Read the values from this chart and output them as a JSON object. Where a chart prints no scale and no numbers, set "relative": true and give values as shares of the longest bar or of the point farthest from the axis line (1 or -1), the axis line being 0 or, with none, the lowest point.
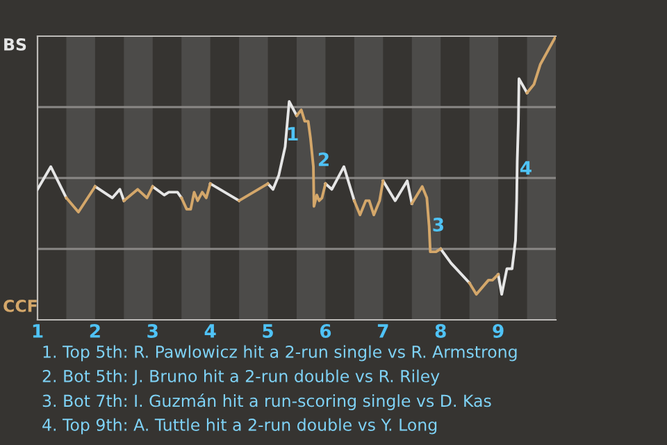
{
  "chart_data": {
    "type": "line",
    "relative": true,
    "xlim": [
      1,
      10
    ],
    "xticks": [
      1,
      2,
      3,
      4,
      5,
      6,
      7,
      8,
      9
    ],
    "marker": "none",
    "line_style": "solid",
    "series": [
      {
        "color": "#e6e6e6",
        "x": [
          1.0,
          1.23,
          1.5,
          1.75,
          2.0,
          2.3,
          2.43,
          2.5,
          2.75,
          3.0,
          3.2,
          3.28,
          3.43,
          3.5,
          3.75,
          4.0,
          4.25,
          4.5,
          4.75,
          5.0,
          5.09,
          5.19,
          5.3,
          5.37,
          5.5,
          5.75,
          6.0,
          6.11,
          6.32,
          6.5,
          6.75,
          7.0,
          7.21,
          7.42,
          7.5,
          7.75,
          8.0,
          8.18,
          8.41,
          8.5,
          8.75,
          9.0,
          9.06,
          9.15,
          9.24,
          9.3,
          9.32,
          9.33,
          9.35,
          9.36,
          9.5
        ],
        "values": [
          0.46,
          0.54,
          0.43,
          null,
          0.47,
          0.43,
          0.46,
          0.42,
          null,
          0.47,
          0.44,
          0.45,
          0.45,
          0.43,
          null,
          0.48,
          0.45,
          0.42,
          null,
          0.48,
          0.46,
          0.51,
          0.61,
          0.77,
          0.72,
          null,
          0.48,
          0.46,
          0.54,
          0.42,
          null,
          0.49,
          0.42,
          0.49,
          0.41,
          null,
          0.25,
          0.2,
          0.15,
          0.13,
          null,
          0.16,
          0.09,
          0.18,
          0.18,
          0.28,
          0.42,
          0.56,
          0.7,
          0.85,
          0.8
        ]
      },
      {
        "color": "#d4a76a",
        "x": [
          1.5,
          1.71,
          2.0,
          2.25,
          2.5,
          2.74,
          2.9,
          3.0,
          3.25,
          3.5,
          3.59,
          3.66,
          3.72,
          3.78,
          3.86,
          3.93,
          4.0,
          4.25,
          4.5,
          4.75,
          5.0,
          5.25,
          5.5,
          5.58,
          5.64,
          5.7,
          5.74,
          5.79,
          5.8,
          5.85,
          5.89,
          5.94,
          6.0,
          6.25,
          6.5,
          6.6,
          6.7,
          6.76,
          6.84,
          6.94,
          7.0,
          7.25,
          7.5,
          7.68,
          7.76,
          7.8,
          7.82,
          7.92,
          8.0,
          8.25,
          8.5,
          8.62,
          8.83,
          8.9,
          9.0,
          9.25,
          9.5,
          9.62,
          9.73,
          10.0
        ],
        "values": [
          0.43,
          0.38,
          0.47,
          null,
          0.42,
          0.46,
          0.43,
          0.47,
          null,
          0.43,
          0.39,
          0.39,
          0.45,
          0.42,
          0.45,
          0.43,
          0.48,
          null,
          0.42,
          0.45,
          0.48,
          null,
          0.72,
          0.74,
          0.7,
          0.7,
          0.64,
          0.54,
          0.4,
          0.44,
          0.42,
          0.43,
          0.48,
          null,
          0.42,
          0.37,
          0.42,
          0.42,
          0.37,
          0.42,
          0.49,
          null,
          0.41,
          0.47,
          0.43,
          0.33,
          0.24,
          0.24,
          0.25,
          null,
          0.13,
          0.09,
          0.14,
          0.14,
          0.16,
          null,
          0.8,
          0.83,
          0.9,
          1.0
        ]
      }
    ],
    "ref_lines": [
      {
        "axis": "y",
        "value": 0.25,
        "color": "#8a8886"
      },
      {
        "axis": "y",
        "value": 0.5,
        "color": "#8a8886"
      },
      {
        "axis": "y",
        "value": 0.75,
        "color": "#8a8886"
      }
    ],
    "bands": [
      {
        "axis": "x",
        "from": 1.5,
        "to": 2,
        "color": "#4c4b49"
      },
      {
        "axis": "x",
        "from": 2.5,
        "to": 3,
        "color": "#4c4b49"
      },
      {
        "axis": "x",
        "from": 3.5,
        "to": 4,
        "color": "#4c4b49"
      },
      {
        "axis": "x",
        "from": 4.5,
        "to": 5,
        "color": "#4c4b49"
      },
      {
        "axis": "x",
        "from": 5.5,
        "to": 6,
        "color": "#4c4b49"
      },
      {
        "axis": "x",
        "from": 6.5,
        "to": 7,
        "color": "#4c4b49"
      },
      {
        "axis": "x",
        "from": 7.5,
        "to": 8,
        "color": "#4c4b49"
      },
      {
        "axis": "x",
        "from": 8.5,
        "to": 9,
        "color": "#4c4b49"
      },
      {
        "axis": "x",
        "from": 9.5,
        "to": 10,
        "color": "#4c4b49"
      }
    ],
    "annotations": [
      "BS",
      "CCF",
      {
        "text": "1",
        "x": 5.43,
        "y": 0.65
      },
      {
        "text": "2",
        "x": 5.97,
        "y": 0.56
      },
      {
        "text": "3",
        "x": 7.96,
        "y": 0.33
      },
      {
        "text": "4",
        "x": 9.48,
        "y": 0.53
      },
      "1. Top 5th: R. Pawlowicz hit a 2-run single vs R. Armstrong",
      "2. Bot 5th: J. Bruno hit a 2-run double vs R. Riley",
      "3. Bot 7th: I. Guzmán hit a run-scoring single vs D. Kas",
      "4. Top 9th: A. Tuttle hit a 2-run double vs Y. Long"
    ]
  }
}
